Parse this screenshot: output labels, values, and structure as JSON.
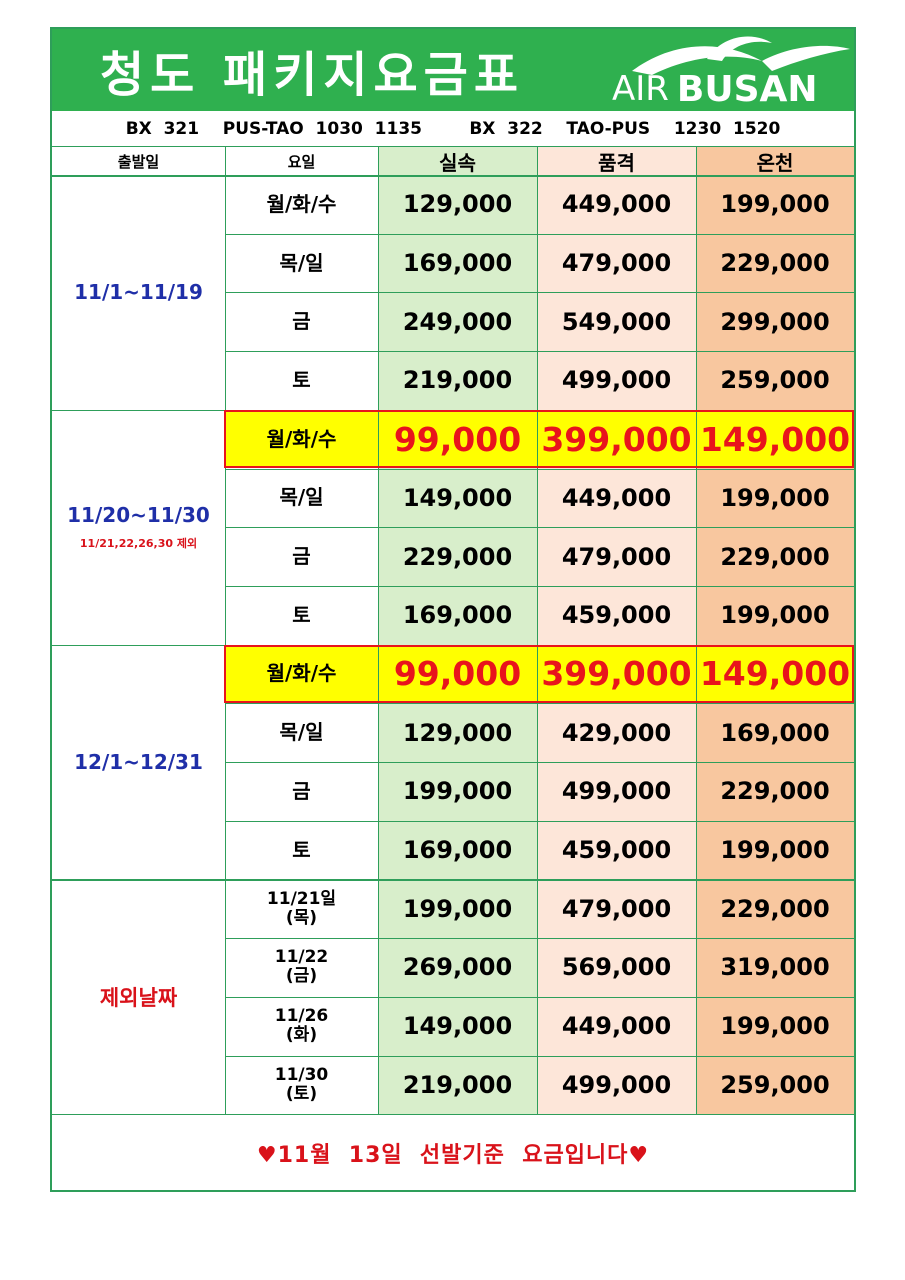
{
  "title": "청도  패키지요금표",
  "logo": {
    "air": "AIR",
    "busan": "BUSAN",
    "swoosh_color": "#ffffff"
  },
  "flight_info": "BX  321    PUS-TAO  1030  1135        BX  322    TAO-PUS    1230  1520",
  "headers": {
    "date": "출발일",
    "day": "요일",
    "c1": "실속",
    "c2": "품격",
    "c3": "온천"
  },
  "colors": {
    "banner": "#2fb04f",
    "grid": "#2e9e5a",
    "col1": "#d8eecb",
    "col2": "#fde6d9",
    "col3": "#f8c79f",
    "highlight": "#ffff00",
    "accent_red": "#e8141c",
    "period_blue": "#1f2fa8"
  },
  "groups": [
    {
      "period": "11/1~11/19",
      "note": "",
      "style": "blue",
      "rows": [
        {
          "day": "월/화/수",
          "p1": "129,000",
          "p2": "449,000",
          "p3": "199,000",
          "highlight": false
        },
        {
          "day": "목/일",
          "p1": "169,000",
          "p2": "479,000",
          "p3": "229,000",
          "highlight": false
        },
        {
          "day": "금",
          "p1": "249,000",
          "p2": "549,000",
          "p3": "299,000",
          "highlight": false
        },
        {
          "day": "토",
          "p1": "219,000",
          "p2": "499,000",
          "p3": "259,000",
          "highlight": false
        }
      ]
    },
    {
      "period": "11/20~11/30",
      "note": "11/21,22,26,30  제외",
      "style": "blue",
      "rows": [
        {
          "day": "월/화/수",
          "p1": "99,000",
          "p2": "399,000",
          "p3": "149,000",
          "highlight": true
        },
        {
          "day": "목/일",
          "p1": "149,000",
          "p2": "449,000",
          "p3": "199,000",
          "highlight": false
        },
        {
          "day": "금",
          "p1": "229,000",
          "p2": "479,000",
          "p3": "229,000",
          "highlight": false
        },
        {
          "day": "토",
          "p1": "169,000",
          "p2": "459,000",
          "p3": "199,000",
          "highlight": false
        }
      ]
    },
    {
      "period": "12/1~12/31",
      "note": "",
      "style": "blue",
      "rows": [
        {
          "day": "월/화/수",
          "p1": "99,000",
          "p2": "399,000",
          "p3": "149,000",
          "highlight": true
        },
        {
          "day": "목/일",
          "p1": "129,000",
          "p2": "429,000",
          "p3": "169,000",
          "highlight": false
        },
        {
          "day": "금",
          "p1": "199,000",
          "p2": "499,000",
          "p3": "229,000",
          "highlight": false
        },
        {
          "day": "토",
          "p1": "169,000",
          "p2": "459,000",
          "p3": "199,000",
          "highlight": false
        }
      ]
    },
    {
      "period": "제외날짜",
      "note": "",
      "style": "red",
      "rows": [
        {
          "day": "11/21일\n(목)",
          "p1": "199,000",
          "p2": "479,000",
          "p3": "229,000",
          "highlight": false
        },
        {
          "day": "11/22\n(금)",
          "p1": "269,000",
          "p2": "569,000",
          "p3": "319,000",
          "highlight": false
        },
        {
          "day": "11/26\n(화)",
          "p1": "149,000",
          "p2": "449,000",
          "p3": "199,000",
          "highlight": false
        },
        {
          "day": "11/30\n(토)",
          "p1": "219,000",
          "p2": "499,000",
          "p3": "259,000",
          "highlight": false
        }
      ]
    }
  ],
  "footer": "♥11월  13일  선발기준  요금입니다♥"
}
